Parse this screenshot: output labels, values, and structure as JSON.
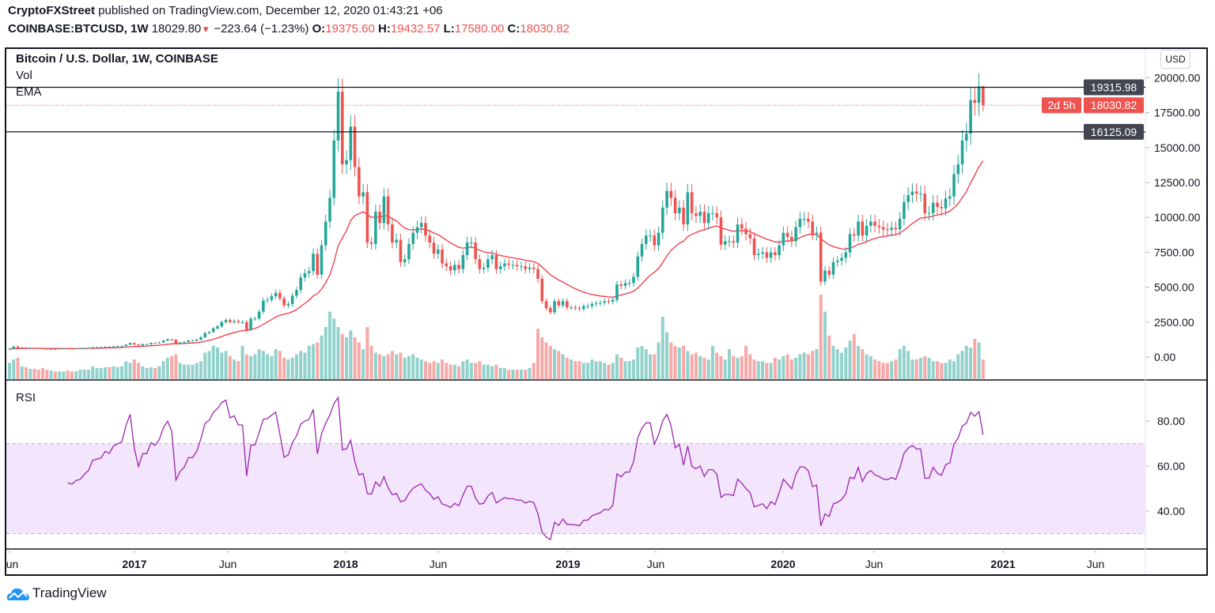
{
  "header": {
    "publisher": "CryptoFXStreet",
    "published_text": "published on TradingView.com, December 12, 2020 01:43:21 +06",
    "symbol": "COINBASE:BTCUSD, 1W",
    "last": "18029.80",
    "change": "−223.64 (−1.23%)",
    "o_label": "O:",
    "o": "19375.60",
    "h_label": "H:",
    "h": "19432.57",
    "l_label": "L:",
    "l": "17580.00",
    "c_label": "C:",
    "c": "18030.82"
  },
  "legend": {
    "title": "Bitcoin / U.S. Dollar, 1W, COINBASE",
    "vol": "Vol",
    "ema": "EMA",
    "rsi": "RSI"
  },
  "currency_button": "USD",
  "brand": "TradingView",
  "colors": {
    "up": "#26a69a",
    "down": "#ef5350",
    "ema": "#f23645",
    "rsi": "#9c27b0",
    "rsi_band": "#f3e5fc",
    "level_line": "#131722",
    "level_label": "#434651"
  },
  "price_axis": {
    "ticks": [
      {
        "value": 0,
        "label": "0.00"
      },
      {
        "value": 2500,
        "label": "2500.00"
      },
      {
        "value": 5000,
        "label": "5000.00"
      },
      {
        "value": 7500,
        "label": "7500.00"
      },
      {
        "value": 10000,
        "label": "10000.00"
      },
      {
        "value": 12500,
        "label": "12500.00"
      },
      {
        "value": 15000,
        "label": "15000.00"
      },
      {
        "value": 17500,
        "label": "17500.00"
      },
      {
        "value": 20000,
        "label": "20000.00"
      }
    ]
  },
  "levels": [
    {
      "value": 19315.98,
      "label": "19315.98"
    },
    {
      "value": 16125.09,
      "label": "16125.09"
    }
  ],
  "last_price": {
    "value": 18030.82,
    "label": "18030.82",
    "countdown": "2d 5h"
  },
  "rsi_axis": {
    "ticks": [
      {
        "value": 80,
        "label": "80.00"
      },
      {
        "value": 60,
        "label": "60.00"
      },
      {
        "value": 40,
        "label": "40.00"
      }
    ],
    "upper_band": 70,
    "lower_band": 30
  },
  "time_axis": [
    {
      "label": "Jun",
      "bold": false
    },
    {
      "label": "2017",
      "bold": true
    },
    {
      "label": "Jun",
      "bold": false
    },
    {
      "label": "2018",
      "bold": true
    },
    {
      "label": "Jun",
      "bold": false
    },
    {
      "label": "2019",
      "bold": true
    },
    {
      "label": "Jun",
      "bold": false
    },
    {
      "label": "2020",
      "bold": true
    },
    {
      "label": "Jun",
      "bold": false
    },
    {
      "label": "2021",
      "bold": true
    },
    {
      "label": "Jun",
      "bold": false
    }
  ],
  "chart_data": {
    "type": "candlestick",
    "interval": "1W",
    "ylim": [
      0,
      20000
    ],
    "last_bar": {
      "open": 19375.6,
      "high": 19432.57,
      "low": 17580.0,
      "close": 18030.82
    },
    "close": [
      580,
      760,
      660,
      680,
      650,
      665,
      655,
      625,
      590,
      570,
      580,
      575,
      605,
      610,
      605,
      600,
      615,
      620,
      640,
      655,
      700,
      705,
      710,
      740,
      735,
      770,
      780,
      790,
      890,
      1000,
      900,
      830,
      920,
      920,
      1010,
      1000,
      1050,
      1180,
      1270,
      1230,
      960,
      1040,
      1080,
      1180,
      1180,
      1250,
      1420,
      1720,
      1800,
      2050,
      2200,
      2500,
      2650,
      2500,
      2580,
      2500,
      2500,
      1930,
      2750,
      2750,
      3250,
      4050,
      4100,
      4350,
      4600,
      4200,
      3700,
      3800,
      4400,
      4800,
      5700,
      6000,
      6150,
      7400,
      5900,
      8000,
      9700,
      11400,
      15500,
      19000,
      13800,
      14100,
      16500,
      13600,
      11500,
      11800,
      8200,
      8100,
      10400,
      9600,
      11500,
      9500,
      8200,
      8400,
      6800,
      7000,
      8100,
      8900,
      9300,
      9600,
      8700,
      8200,
      7400,
      7700,
      6700,
      6500,
      6200,
      6600,
      6300,
      7300,
      8200,
      8200,
      7000,
      6300,
      6400,
      7000,
      7300,
      6300,
      6500,
      6700,
      6600,
      6600,
      6500,
      6500,
      6300,
      6400,
      6300,
      5600,
      4000,
      3500,
      3200,
      4000,
      3700,
      4000,
      3550,
      3550,
      3500,
      3450,
      3650,
      3650,
      3800,
      3850,
      3900,
      4000,
      3970,
      4100,
      5200,
      5100,
      5300,
      5300,
      5750,
      7200,
      8100,
      8700,
      8700,
      8000,
      8900,
      10700,
      11900,
      11400,
      10300,
      10700,
      9500,
      11800,
      10300,
      10100,
      10400,
      9600,
      10300,
      10300,
      10000,
      8050,
      8300,
      8300,
      8200,
      9500,
      9200,
      8800,
      8500,
      7300,
      7400,
      7500,
      7100,
      7500,
      7300,
      8000,
      8900,
      8600,
      8300,
      9300,
      9900,
      9900,
      9700,
      8800,
      8900,
      5400,
      6200,
      5900,
      6800,
      6900,
      7100,
      7500,
      8800,
      8700,
      9700,
      8700,
      9400,
      9700,
      9400,
      9300,
      9150,
      9100,
      9250,
      9150,
      9900,
      11100,
      11600,
      11850,
      11700,
      11700,
      10300,
      10300,
      11050,
      10750,
      10650,
      11350,
      11500,
      13100,
      13800,
      15500,
      16000,
      18400,
      18200,
      19375.6,
      18030.82
    ],
    "volume_relative": [
      20,
      24,
      26,
      16,
      15,
      13,
      13,
      12,
      14,
      12,
      11,
      10,
      10,
      10,
      11,
      10,
      10,
      12,
      12,
      12,
      16,
      14,
      14,
      15,
      15,
      16,
      15,
      16,
      22,
      20,
      24,
      20,
      16,
      14,
      15,
      14,
      16,
      22,
      26,
      28,
      30,
      20,
      18,
      18,
      18,
      20,
      22,
      32,
      34,
      40,
      38,
      32,
      34,
      28,
      24,
      22,
      40,
      30,
      28,
      30,
      36,
      34,
      30,
      28,
      36,
      34,
      26,
      24,
      26,
      30,
      34,
      32,
      40,
      42,
      44,
      52,
      62,
      80,
      72,
      62,
      54,
      50,
      58,
      50,
      44,
      36,
      62,
      40,
      32,
      30,
      28,
      30,
      34,
      30,
      32,
      26,
      28,
      30,
      26,
      24,
      22,
      20,
      22,
      20,
      24,
      20,
      18,
      18,
      16,
      22,
      24,
      20,
      20,
      22,
      18,
      18,
      16,
      18,
      14,
      14,
      12,
      12,
      12,
      12,
      12,
      14,
      20,
      60,
      50,
      44,
      40,
      36,
      34,
      30,
      26,
      24,
      22,
      22,
      20,
      20,
      24,
      22,
      22,
      20,
      18,
      20,
      30,
      26,
      22,
      22,
      24,
      38,
      40,
      36,
      30,
      30,
      44,
      74,
      56,
      44,
      40,
      38,
      40,
      34,
      30,
      32,
      28,
      26,
      24,
      40,
      32,
      28,
      24,
      36,
      28,
      26,
      28,
      40,
      30,
      24,
      22,
      22,
      20,
      20,
      26,
      24,
      28,
      30,
      24,
      26,
      30,
      32,
      30,
      34,
      36,
      100,
      80,
      52,
      40,
      36,
      32,
      38,
      46,
      54,
      40,
      36,
      30,
      28,
      24,
      22,
      20,
      20,
      22,
      24,
      36,
      40,
      34,
      24,
      24,
      26,
      28,
      26,
      22,
      22,
      20,
      20,
      24,
      22,
      30,
      34,
      40,
      38,
      48,
      44,
      24
    ]
  }
}
